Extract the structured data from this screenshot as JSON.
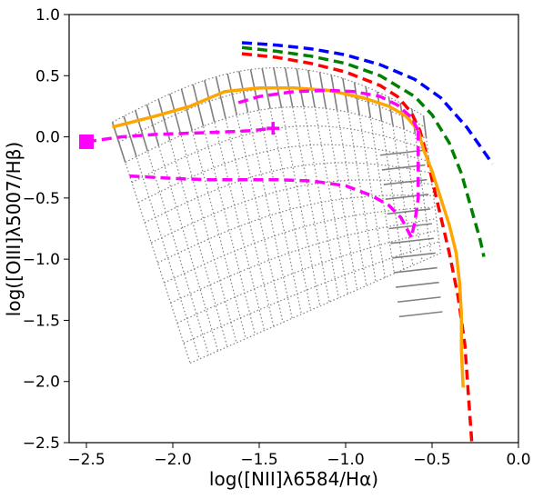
{
  "chart_data": {
    "type": "line",
    "xlabel": "log([NII]λ6584/Hα)",
    "ylabel": "log([OIII]λ5007/Hβ)",
    "xlim": [
      -2.6,
      0.0
    ],
    "ylim": [
      -2.5,
      1.0
    ],
    "xticks": [
      -2.5,
      -2.0,
      -1.5,
      -1.0,
      -0.5,
      0.0
    ],
    "xtick_labels": [
      "−2.5",
      "−2.0",
      "−1.5",
      "−1.0",
      "−0.5",
      "0.0"
    ],
    "yticks": [
      1.0,
      0.5,
      0.0,
      -0.5,
      -1.0,
      -1.5,
      -2.0,
      -2.5
    ],
    "ytick_labels": [
      "1.0",
      "0.5",
      "0.0",
      "−0.5",
      "−1.0",
      "−1.5",
      "−2.0",
      "−2.5"
    ],
    "grid": false,
    "colors": {
      "model_grid": "#808080",
      "orange": "#ffa500",
      "magenta": "#ff00ff",
      "red": "#ff0000",
      "green": "#008000",
      "blue": "#0000ff"
    },
    "curves": [
      {
        "style": "dashed",
        "color": "#0000ff",
        "x": [
          -1.6,
          -1.4,
          -1.2,
          -1.0,
          -0.8,
          -0.6,
          -0.45,
          -0.3,
          -0.2,
          -0.15
        ],
        "y": [
          0.77,
          0.75,
          0.72,
          0.67,
          0.59,
          0.47,
          0.32,
          0.08,
          -0.12,
          -0.22
        ]
      },
      {
        "style": "dashed",
        "color": "#008000",
        "x": [
          -1.6,
          -1.4,
          -1.2,
          -1.0,
          -0.8,
          -0.6,
          -0.5,
          -0.4,
          -0.33,
          -0.28,
          -0.22,
          -0.2
        ],
        "y": [
          0.73,
          0.7,
          0.66,
          0.6,
          0.5,
          0.33,
          0.18,
          -0.05,
          -0.3,
          -0.55,
          -0.85,
          -0.98
        ]
      },
      {
        "style": "dashed",
        "color": "#ff0000",
        "x": [
          -1.6,
          -1.4,
          -1.2,
          -1.0,
          -0.8,
          -0.7,
          -0.62,
          -0.57,
          -0.53,
          -0.5,
          -0.45,
          -0.4,
          -0.35,
          -0.31,
          -0.29,
          -0.27
        ],
        "y": [
          0.68,
          0.65,
          0.6,
          0.53,
          0.42,
          0.33,
          0.2,
          0.05,
          -0.15,
          -0.35,
          -0.65,
          -0.95,
          -1.3,
          -1.7,
          -2.1,
          -2.5
        ]
      },
      {
        "style": "solid",
        "color": "#ffa500",
        "x": [
          -2.35,
          -2.1,
          -1.9,
          -1.7,
          -1.5,
          -1.3,
          -1.1,
          -0.9,
          -0.75,
          -0.65,
          -0.58,
          -0.55,
          -0.5,
          -0.45,
          -0.4,
          -0.36,
          -0.34,
          -0.33,
          -0.33,
          -0.32
        ],
        "y": [
          0.08,
          0.17,
          0.25,
          0.37,
          0.4,
          0.4,
          0.38,
          0.32,
          0.25,
          0.17,
          0.05,
          -0.1,
          -0.28,
          -0.5,
          -0.72,
          -0.95,
          -1.2,
          -1.45,
          -1.75,
          -2.05
        ]
      },
      {
        "style": "dashed",
        "color": "#ff00ff",
        "x": [
          -2.5,
          -2.3,
          -2.1,
          -1.9,
          -1.7,
          -1.55,
          -1.42
        ],
        "y": [
          -0.04,
          0.0,
          0.02,
          0.03,
          0.04,
          0.05,
          0.07
        ]
      },
      {
        "style": "dashed",
        "color": "#ff00ff",
        "x": [
          -2.25,
          -2.0,
          -1.8,
          -1.6,
          -1.4,
          -1.2,
          -1.0,
          -0.85,
          -0.75,
          -0.68,
          -0.62
        ],
        "y": [
          -0.32,
          -0.34,
          -0.35,
          -0.35,
          -0.35,
          -0.36,
          -0.4,
          -0.48,
          -0.56,
          -0.66,
          -0.82
        ]
      },
      {
        "style": "dashed",
        "color": "#ff00ff",
        "x": [
          -1.62,
          -1.5,
          -1.3,
          -1.1,
          -0.95,
          -0.8,
          -0.7,
          -0.62,
          -0.58
        ],
        "y": [
          0.28,
          0.33,
          0.37,
          0.38,
          0.37,
          0.33,
          0.26,
          0.16,
          0.05
        ]
      },
      {
        "style": "dashed",
        "color": "#ff00ff",
        "x": [
          -0.58,
          -0.58,
          -0.58,
          -0.6,
          -0.62
        ],
        "y": [
          0.05,
          -0.22,
          -0.5,
          -0.7,
          -0.82
        ]
      }
    ],
    "markers": [
      {
        "shape": "square",
        "color": "#ff00ff",
        "x": -2.5,
        "y": -0.04
      },
      {
        "shape": "plus",
        "color": "#ff00ff",
        "x": -1.42,
        "y": 0.07
      }
    ]
  }
}
